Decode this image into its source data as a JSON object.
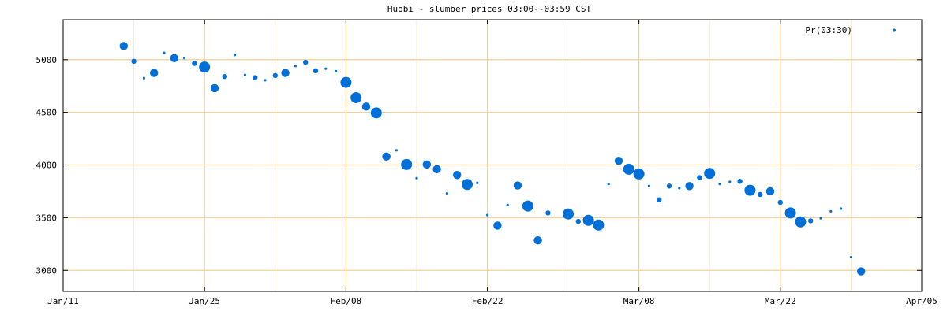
{
  "chart_data": {
    "type": "scatter",
    "title": "Huobi - slumber prices 03:00--03:59 CST",
    "xlabel": "",
    "ylabel": "",
    "x_ticks": [
      "Jan/11",
      "Jan/25",
      "Feb/08",
      "Feb/22",
      "Mar/08",
      "Mar/22",
      "Apr/05"
    ],
    "y_ticks": [
      3000,
      3500,
      4000,
      4500,
      5000
    ],
    "xlim": [
      "Jan/11",
      "Apr/05"
    ],
    "ylim": [
      2800,
      5380
    ],
    "grid": true,
    "legend_position": "top-right",
    "colors": {
      "series": "#0070d8",
      "grid_major": "#f5d19a",
      "grid_minor": "#fbe8cc",
      "axis": "#000000"
    },
    "series": [
      {
        "name": "Pr(03:30)",
        "x": [
          "Jan/17",
          "Jan/18",
          "Jan/19",
          "Jan/20",
          "Jan/21",
          "Jan/22",
          "Jan/23",
          "Jan/24",
          "Jan/25",
          "Jan/26",
          "Jan/27",
          "Jan/28",
          "Jan/29",
          "Jan/30",
          "Jan/31",
          "Feb/01",
          "Feb/02",
          "Feb/03",
          "Feb/04",
          "Feb/05",
          "Feb/06",
          "Feb/07",
          "Feb/08",
          "Feb/09",
          "Feb/10",
          "Feb/11",
          "Feb/12",
          "Feb/13",
          "Feb/14",
          "Feb/15",
          "Feb/16",
          "Feb/17",
          "Feb/18",
          "Feb/19",
          "Feb/20",
          "Feb/21",
          "Feb/22",
          "Feb/23",
          "Feb/24",
          "Feb/25",
          "Feb/26",
          "Feb/27",
          "Feb/28",
          "Mar/01",
          "Mar/02",
          "Mar/03",
          "Mar/04",
          "Mar/05",
          "Mar/06",
          "Mar/07",
          "Mar/08",
          "Mar/09",
          "Mar/10",
          "Mar/11",
          "Mar/12",
          "Mar/13",
          "Mar/14",
          "Mar/15",
          "Mar/16",
          "Mar/17",
          "Mar/18",
          "Mar/19",
          "Mar/20",
          "Mar/21",
          "Mar/22",
          "Mar/23",
          "Mar/24",
          "Mar/25",
          "Mar/26",
          "Mar/27",
          "Mar/28",
          "Mar/29"
        ],
        "y": [
          5130,
          4985,
          4825,
          4875,
          5065,
          5015,
          5015,
          4965,
          4930,
          4730,
          4840,
          5045,
          4855,
          4830,
          4805,
          4850,
          4875,
          4940,
          4975,
          4895,
          4915,
          4890,
          4785,
          4640,
          4555,
          4495,
          4080,
          4140,
          4005,
          3875,
          4005,
          3960,
          3730,
          3905,
          3815,
          3830,
          3525,
          3425,
          3620,
          3805,
          3610,
          3285,
          3545,
          3535,
          3465,
          3475,
          3430,
          3820,
          4040,
          3960,
          3915,
          3800,
          3670,
          3800,
          3780,
          3800,
          3880,
          3920,
          3820,
          3840,
          3845,
          3760,
          3720,
          3750,
          3645,
          3545,
          3460,
          3470,
          3495,
          3560,
          3585,
          3125
        ],
        "size": [
          3,
          2,
          1,
          3,
          1,
          3,
          1,
          2,
          4,
          3,
          2,
          1,
          1,
          2,
          1,
          2,
          3,
          1,
          2,
          2,
          1,
          1,
          4,
          4,
          3,
          4,
          3,
          1,
          4,
          1,
          3,
          3,
          1,
          3,
          4,
          1,
          1,
          3,
          1,
          3,
          4,
          3,
          2,
          4,
          2,
          4,
          4,
          1,
          3,
          4,
          4,
          1,
          2,
          2,
          1,
          3,
          2,
          4,
          1,
          1,
          2,
          4,
          2,
          3,
          2,
          4,
          4,
          2,
          1,
          1,
          1,
          1
        ]
      },
      {
        "name": "",
        "x": [
          "Mar/30"
        ],
        "y": [
          2990
        ],
        "size": [
          3
        ]
      }
    ]
  }
}
